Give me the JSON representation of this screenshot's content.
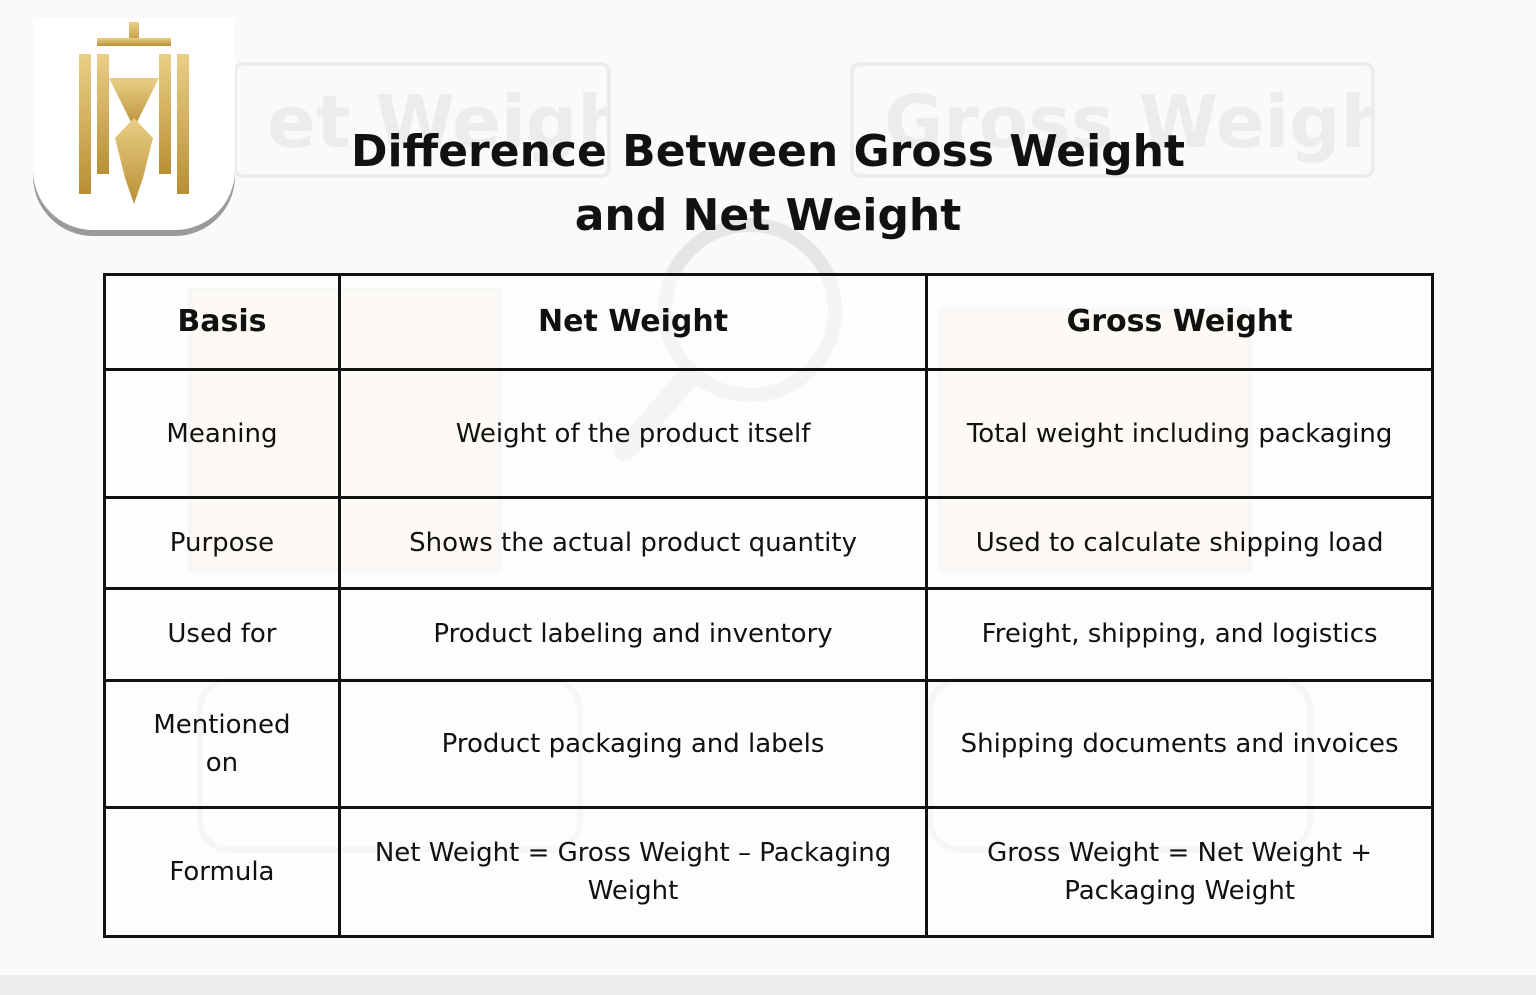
{
  "background": {
    "labels": [
      "et Weight",
      "Gross Weight"
    ]
  },
  "title": "Difference Between Gross Weight and Net Weight",
  "table": {
    "header": [
      "Basis",
      "Net Weight",
      "Gross Weight"
    ],
    "rows": [
      [
        "Meaning",
        "Weight of the product itself",
        "Total weight including packaging"
      ],
      [
        "Purpose",
        "Shows the actual product quantity",
        "Used to calculate shipping load"
      ],
      [
        "Used for",
        "Product labeling and inventory",
        "Freight, shipping, and logistics"
      ],
      [
        "Mentioned on",
        "Product packaging and labels",
        "Shipping documents and invoices"
      ],
      [
        "Formula",
        "Net Weight = Gross Weight – Packaging Weight",
        "Gross Weight = Net Weight + Packaging Weight"
      ]
    ]
  }
}
